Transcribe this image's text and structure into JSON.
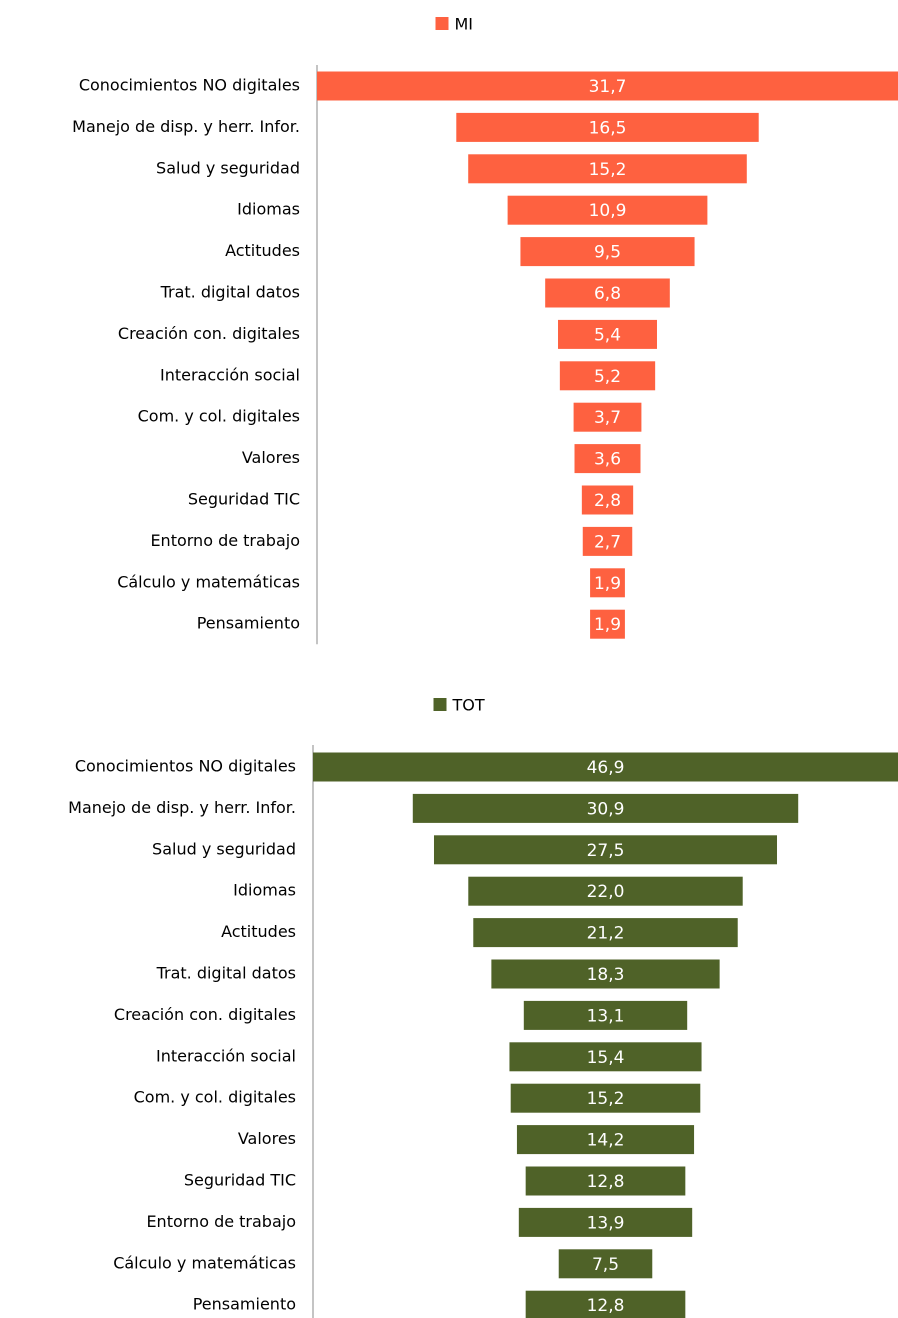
{
  "chart_data": [
    {
      "type": "funnel",
      "categories": [
        "Conocimientos NO digitales",
        "Manejo de disp. y  herr. Infor.",
        "Salud y seguridad",
        "Idiomas",
        "Actitudes",
        "Trat. digital datos",
        "Creación con. digitales",
        "Interacción social",
        "Com. y col. digitales",
        "Valores",
        "Seguridad TIC",
        "Entorno de trabajo",
        "Cálculo y matemáticas",
        "Pensamiento"
      ],
      "series": [
        {
          "name": "MI",
          "color": "#fe6140",
          "values": [
            31.7,
            16.5,
            15.2,
            10.9,
            9.5,
            6.8,
            5.4,
            5.2,
            3.7,
            3.6,
            2.8,
            2.7,
            1.9,
            1.9
          ],
          "value_labels": [
            "31,7",
            "16,5",
            "15,2",
            "10,9",
            "9,5",
            "6,8",
            "5,4",
            "5,2",
            "3,7",
            "3,6",
            "2,8",
            "2,7",
            "1,9",
            "1,9"
          ]
        }
      ]
    },
    {
      "type": "funnel",
      "categories": [
        "Conocimientos NO digitales",
        "Manejo de disp. y  herr. Infor.",
        "Salud y seguridad",
        "Idiomas",
        "Actitudes",
        "Trat. digital datos",
        "Creación con. digitales",
        "Interacción social",
        "Com. y col. digitales",
        "Valores",
        "Seguridad TIC",
        "Entorno de trabajo",
        "Cálculo y matemáticas",
        "Pensamiento"
      ],
      "series": [
        {
          "name": "TOT",
          "color": "#4f6228",
          "values": [
            46.9,
            30.9,
            27.5,
            22.0,
            21.2,
            18.3,
            13.1,
            15.4,
            15.2,
            14.2,
            12.8,
            13.9,
            7.5,
            12.8
          ],
          "value_labels": [
            "46,9",
            "30,9",
            "27,5",
            "22,0",
            "21,2",
            "18,3",
            "13,1",
            "15,4",
            "15,2",
            "14,2",
            "12,8",
            "13,9",
            "7,5",
            "12,8"
          ]
        }
      ]
    }
  ]
}
